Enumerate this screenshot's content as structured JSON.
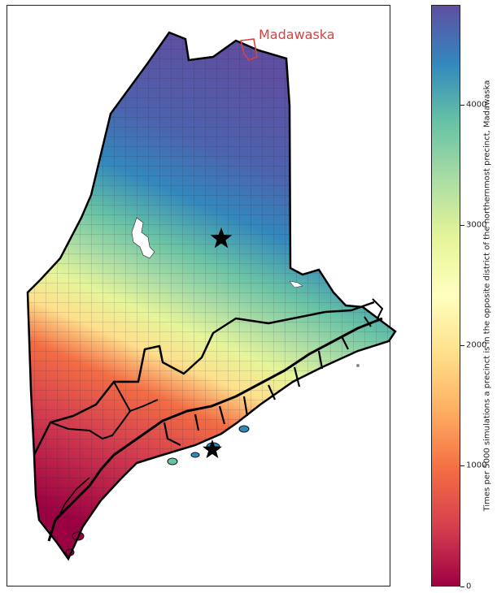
{
  "map": {
    "annotation_label": "Madawaska",
    "annotation_color": "#d9413e"
  },
  "colorbar": {
    "label": "Times per 5000 simulations a precinct is in the opposite district of the northernmost precinct, Madawaska",
    "colormap": "Spectral",
    "min": 0,
    "max": 4820,
    "ticks": [
      "0",
      "1000",
      "2000",
      "3000",
      "4000"
    ]
  },
  "colors": {
    "low": "#9e0142",
    "high": "#5e4fa2",
    "outline": "#000000"
  }
}
